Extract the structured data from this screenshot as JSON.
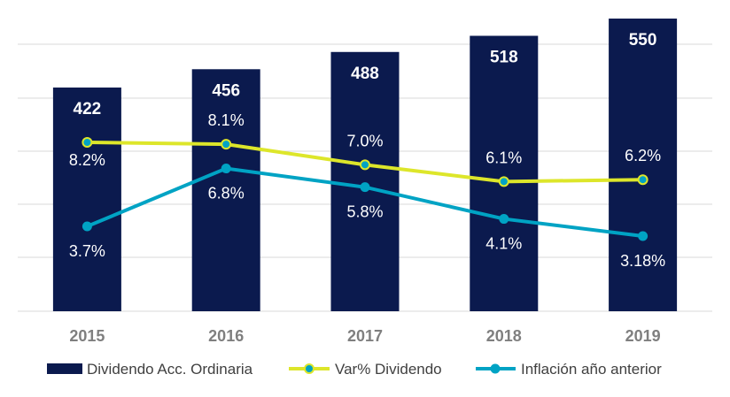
{
  "chart_data": {
    "type": "bar",
    "categories": [
      "2015",
      "2016",
      "2017",
      "2018",
      "2019"
    ],
    "bar_series": {
      "name": "Dividendo Acc. Ordinaria",
      "values": [
        422,
        456,
        488,
        518,
        550
      ],
      "labels": [
        "422",
        "456",
        "488",
        "518",
        "550"
      ],
      "color": "#0b1a4e"
    },
    "line_series": [
      {
        "name": "Var% Dividendo",
        "values": [
          8.2,
          8.1,
          7.0,
          6.1,
          6.2
        ],
        "labels": [
          "8.2%",
          "8.1%",
          "7.0%",
          "6.1%",
          "6.2%"
        ],
        "color": "#dde62a",
        "marker_color": "#00a3c4"
      },
      {
        "name": "Inflación año anterior",
        "values": [
          3.7,
          6.8,
          5.8,
          4.1,
          3.18
        ],
        "labels": [
          "3.7%",
          "6.8%",
          "5.8%",
          "4.1%",
          "3.18%"
        ],
        "color": "#00a3c4"
      }
    ],
    "grid": true,
    "legend_position": "bottom"
  }
}
